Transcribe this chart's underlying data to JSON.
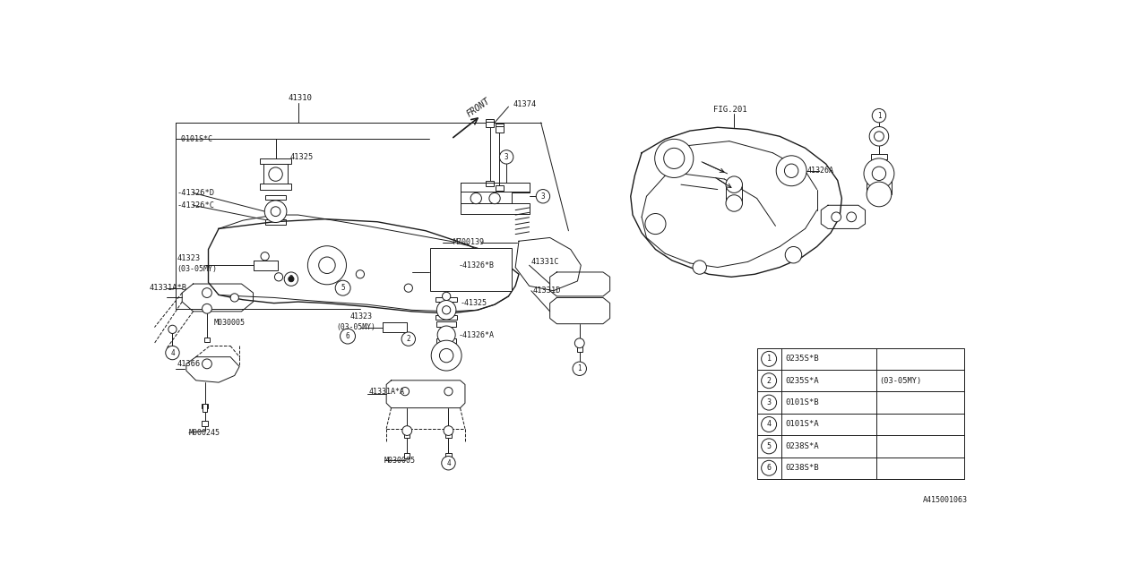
{
  "bg_color": "#ffffff",
  "line_color": "#1a1a1a",
  "fig_width": 12.8,
  "fig_height": 6.4,
  "dpi": 100,
  "legend_items": [
    {
      "num": "1",
      "code": "0235S*B",
      "note": ""
    },
    {
      "num": "2",
      "code": "0235S*A",
      "note": "(03-05MY)"
    },
    {
      "num": "3",
      "code": "0101S*B",
      "note": ""
    },
    {
      "num": "4",
      "code": "0101S*A",
      "note": ""
    },
    {
      "num": "5",
      "code": "0238S*A",
      "note": ""
    },
    {
      "num": "6",
      "code": "0238S*B",
      "note": ""
    }
  ],
  "figure_id": "A415001063",
  "scale": [
    0,
    12.8,
    0,
    6.4
  ]
}
